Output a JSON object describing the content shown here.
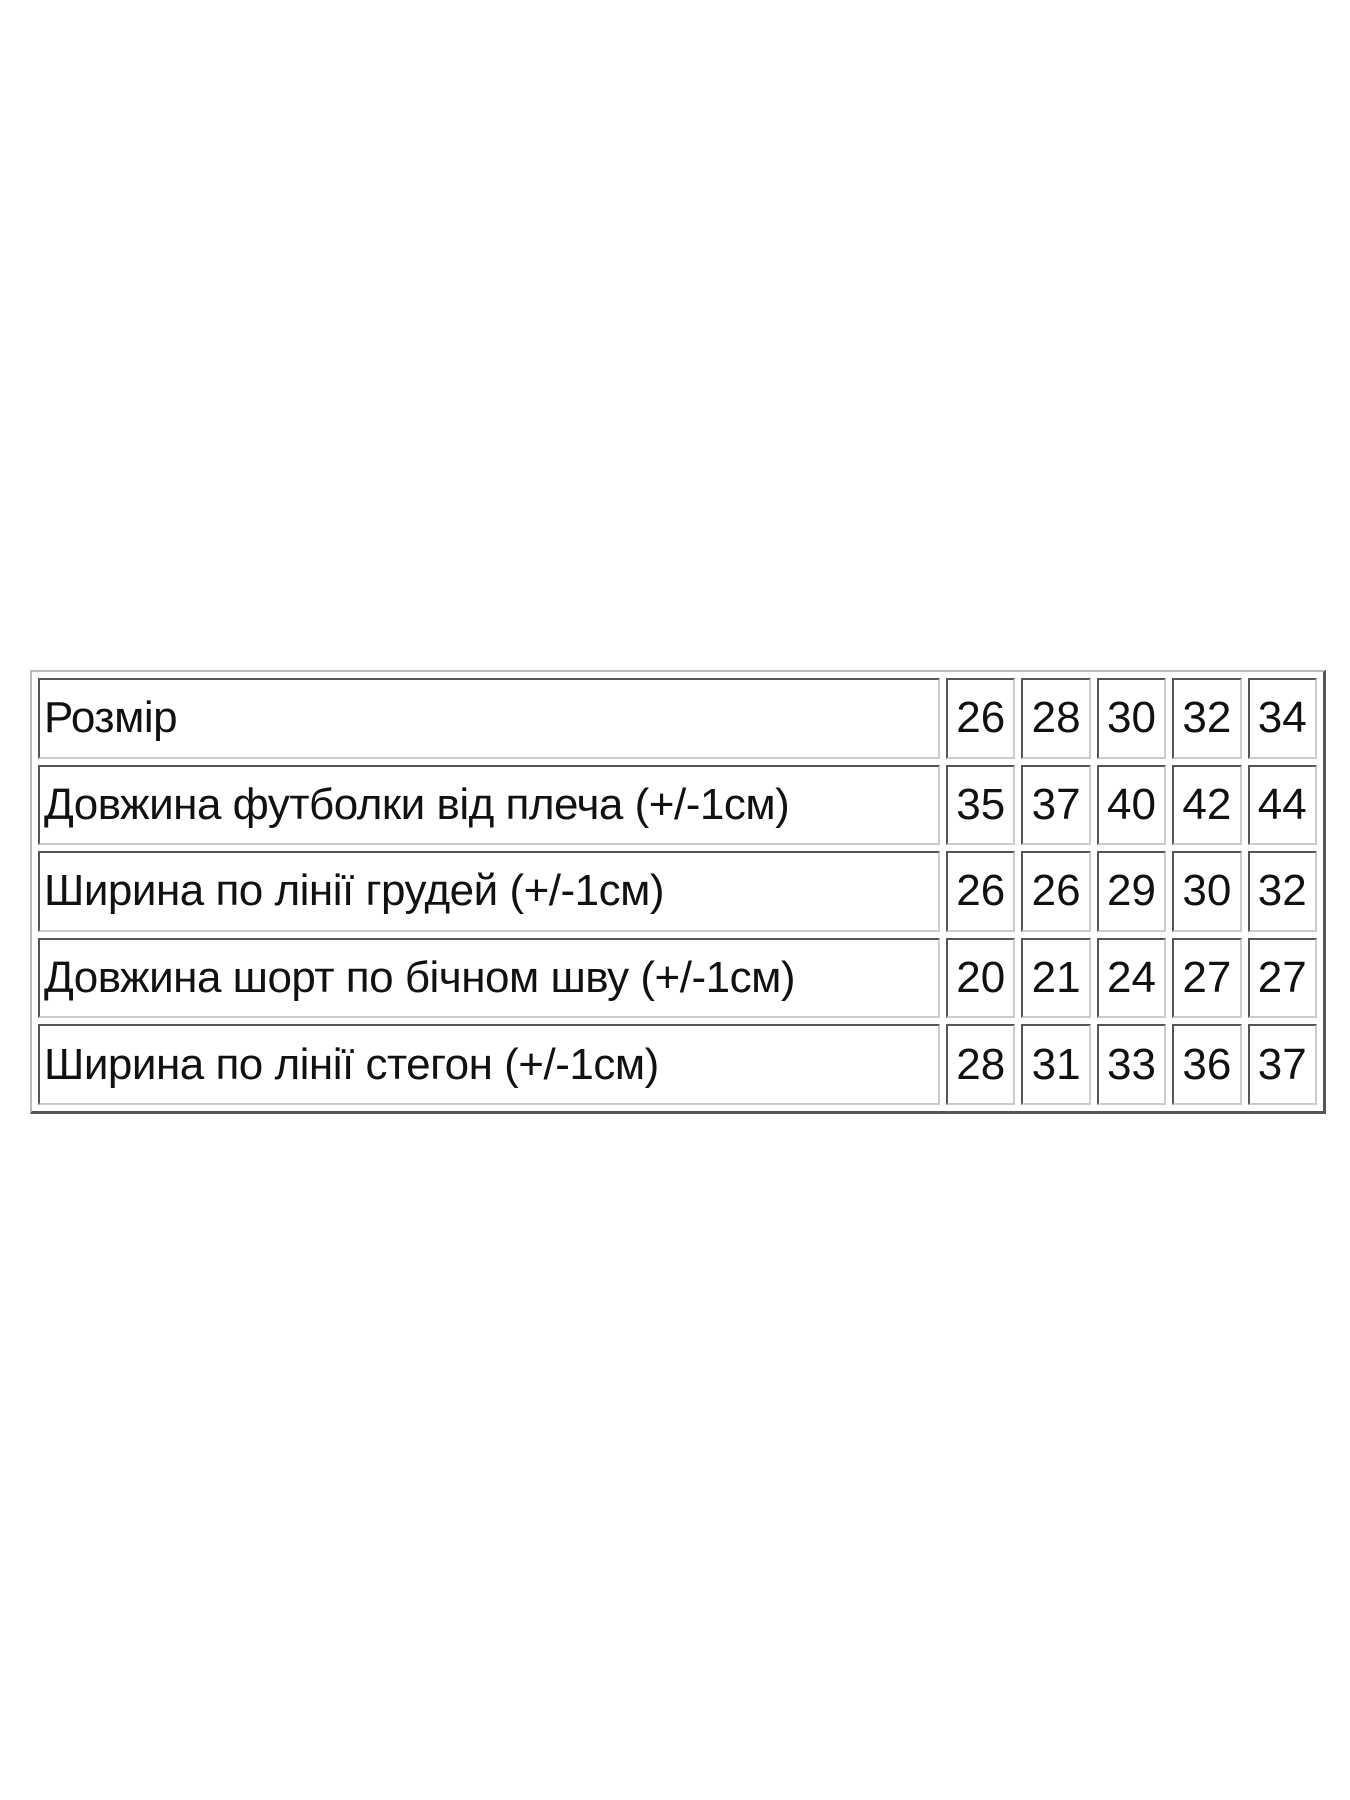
{
  "table": {
    "rows": [
      {
        "label": "Розмір",
        "values": [
          "26",
          "28",
          "30",
          "32",
          "34"
        ]
      },
      {
        "label": "Довжина футболки від плеча (+/-1см)",
        "values": [
          "35",
          "37",
          "40",
          "42",
          "44"
        ]
      },
      {
        "label": "Ширина по лінії грудей (+/-1см)",
        "values": [
          "26",
          "26",
          "29",
          "30",
          "32"
        ]
      },
      {
        "label": "Довжина шорт по бічном шву (+/-1см)",
        "values": [
          "20",
          "21",
          "24",
          "27",
          "27"
        ]
      },
      {
        "label": "Ширина по лінії стегон (+/-1см)",
        "values": [
          "28",
          "31",
          "33",
          "36",
          "37"
        ]
      }
    ]
  }
}
